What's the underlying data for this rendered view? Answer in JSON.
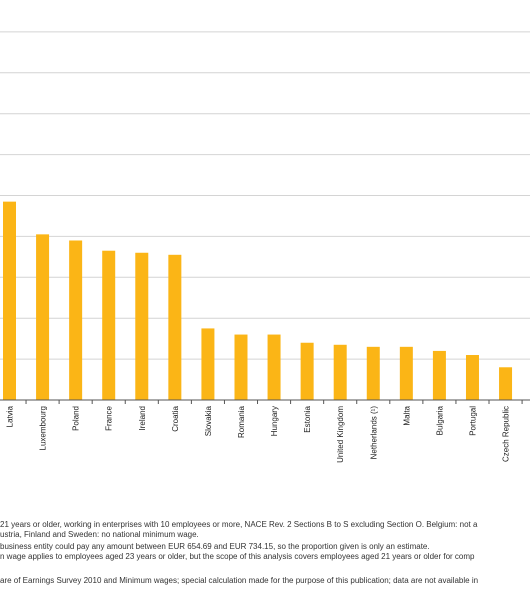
{
  "chart_data": {
    "type": "bar",
    "categories": [
      "Latvia",
      "Luxembourg",
      "Poland",
      "France",
      "Ireland",
      "Croatia",
      "Slovakia",
      "Romania",
      "Hungary",
      "Estonia",
      "United Kingdom",
      "Netherlands (¹)",
      "Malta",
      "Bulgaria",
      "Portugal",
      "Czech Republic"
    ],
    "values": [
      9.7,
      8.1,
      7.8,
      7.3,
      7.2,
      7.1,
      3.5,
      3.2,
      3.2,
      2.8,
      2.7,
      2.6,
      2.6,
      2.4,
      2.2,
      1.6
    ],
    "ylim": [
      0,
      20
    ],
    "grid": true,
    "bar_color": "#fbb516",
    "grid_color": "#d4d4d4"
  },
  "footnotes": {
    "line1": "21 years or older, working in enterprises with 10 employees or more, NACE Rev. 2 Sections B to S excluding Section O. Belgium: not a",
    "line2": "ustria, Finland and Sweden: no national minimum wage.",
    "line3": "business entity could pay any amount between EUR 654.69 and EUR 734.15, so the proportion given is only an estimate.",
    "line4": "n wage applies to employees aged 23 years or older, but the scope of this analysis covers employees aged 21 years or older for comp",
    "line5": "are of Earnings Survey 2010 and Minimum wages; special calculation made for the purpose of this publication; data are not available in"
  }
}
